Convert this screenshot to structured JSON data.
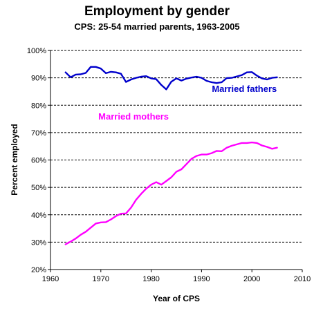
{
  "chart_data": {
    "type": "line",
    "title": "Employment by gender",
    "subtitle": "CPS: 25-54 married parents, 1963-2005",
    "xlabel": "Year of CPS",
    "ylabel": "Percent employed",
    "xlim": [
      1960,
      2010
    ],
    "ylim": [
      20,
      100
    ],
    "x_ticks": [
      "1960",
      "1970",
      "1980",
      "1990",
      "2000",
      "2010"
    ],
    "y_ticks": [
      "20%",
      "30%",
      "40%",
      "50%",
      "60%",
      "70%",
      "80%",
      "90%",
      "100%"
    ],
    "grid": "horizontal dashed",
    "series": [
      {
        "name": "Married fathers",
        "color": "#0000cc",
        "x": [
          1963,
          1964,
          1965,
          1966,
          1967,
          1968,
          1969,
          1970,
          1971,
          1972,
          1973,
          1974,
          1975,
          1976,
          1977,
          1978,
          1979,
          1980,
          1981,
          1982,
          1983,
          1984,
          1985,
          1986,
          1987,
          1988,
          1989,
          1990,
          1991,
          1992,
          1993,
          1994,
          1995,
          1996,
          1997,
          1998,
          1999,
          2000,
          2001,
          2002,
          2003,
          2004,
          2005
        ],
        "values": [
          92,
          90.2,
          91.2,
          91.3,
          91.8,
          94,
          94,
          93.4,
          91.7,
          92.2,
          92,
          91.5,
          88.5,
          89.4,
          90,
          90.4,
          90.6,
          89.8,
          89.5,
          87.4,
          85.8,
          88.6,
          89.8,
          89,
          89.7,
          90.1,
          90.4,
          90,
          88.9,
          88.4,
          88.1,
          88.4,
          89.9,
          90,
          90.5,
          91,
          92,
          92.1,
          90.8,
          89.8,
          89.4,
          90,
          90.2
        ]
      },
      {
        "name": "Married mothers",
        "color": "#ff00ff",
        "x": [
          1963,
          1964,
          1965,
          1966,
          1967,
          1968,
          1969,
          1970,
          1971,
          1972,
          1973,
          1974,
          1975,
          1976,
          1977,
          1978,
          1979,
          1980,
          1981,
          1982,
          1983,
          1984,
          1985,
          1986,
          1987,
          1988,
          1989,
          1990,
          1991,
          1992,
          1993,
          1994,
          1995,
          1996,
          1997,
          1998,
          1999,
          2000,
          2001,
          2002,
          2003,
          2004,
          2005
        ],
        "values": [
          29.2,
          30.2,
          31.3,
          32.7,
          33.8,
          35.3,
          36.8,
          37.2,
          37.3,
          38.3,
          39.5,
          40.4,
          40.5,
          42.6,
          45.5,
          47.6,
          49.5,
          51,
          51.9,
          51,
          52.3,
          53.7,
          55.7,
          56.6,
          58.5,
          60.4,
          61.5,
          62,
          62,
          62.5,
          63.3,
          63.2,
          64.5,
          65.2,
          65.7,
          66.2,
          66.2,
          66.4,
          66.2,
          65.3,
          64.8,
          64.1,
          64.5
        ]
      }
    ],
    "annotations": [
      {
        "text": "Married fathers",
        "x": 1998.5,
        "y": 84.9,
        "color": "#0000cc"
      },
      {
        "text": "Married mothers",
        "x": 1976.5,
        "y": 74.8,
        "color": "#ff00ff"
      }
    ]
  }
}
